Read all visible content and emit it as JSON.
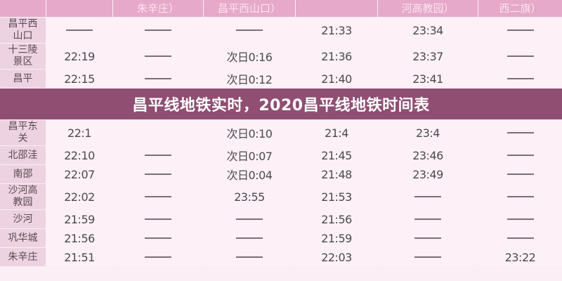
{
  "title": "昌平线地铁实时，2020昌平线地铁时间表",
  "headers": [
    "",
    "",
    "朱辛庄）",
    "昌平西山口）",
    "",
    "河高教园）",
    "西二旗）"
  ],
  "rows": [
    {
      "station": "昌平西山口",
      "cells": [
        "—",
        "—",
        "—",
        "21:33",
        "23:34",
        "—"
      ]
    },
    {
      "station": "十三陵景区",
      "cells": [
        "22:19",
        "—",
        "次日0:16",
        "21:36",
        "23:37",
        "—"
      ]
    },
    {
      "station": "昌平",
      "cells": [
        "22:15",
        "—",
        "次日0:12",
        "21:40",
        "23:41",
        "—"
      ]
    },
    {
      "station": "昌平东关",
      "cells": [
        "22:1",
        "",
        "次日0:10",
        "21:4",
        "23:4",
        "—"
      ]
    },
    {
      "station": "北邵洼",
      "cells": [
        "22:10",
        "—",
        "次日0:07",
        "21:45",
        "23:46",
        "—"
      ]
    },
    {
      "station": "南邵",
      "cells": [
        "22:07",
        "—",
        "次日0:04",
        "21:48",
        "23:49",
        "—"
      ]
    },
    {
      "station": "沙河高教园",
      "cells": [
        "22:02",
        "—",
        "23:55",
        "21:53",
        "—",
        "—"
      ]
    },
    {
      "station": "沙河",
      "cells": [
        "21:59",
        "—",
        "—",
        "21:56",
        "—",
        "—"
      ]
    },
    {
      "station": "巩华城",
      "cells": [
        "21:56",
        "—",
        "—",
        "21:59",
        "—",
        "—"
      ]
    },
    {
      "station": "朱辛庄",
      "cells": [
        "21:51",
        "—",
        "—",
        "22:03",
        "—",
        "23:22"
      ]
    }
  ]
}
